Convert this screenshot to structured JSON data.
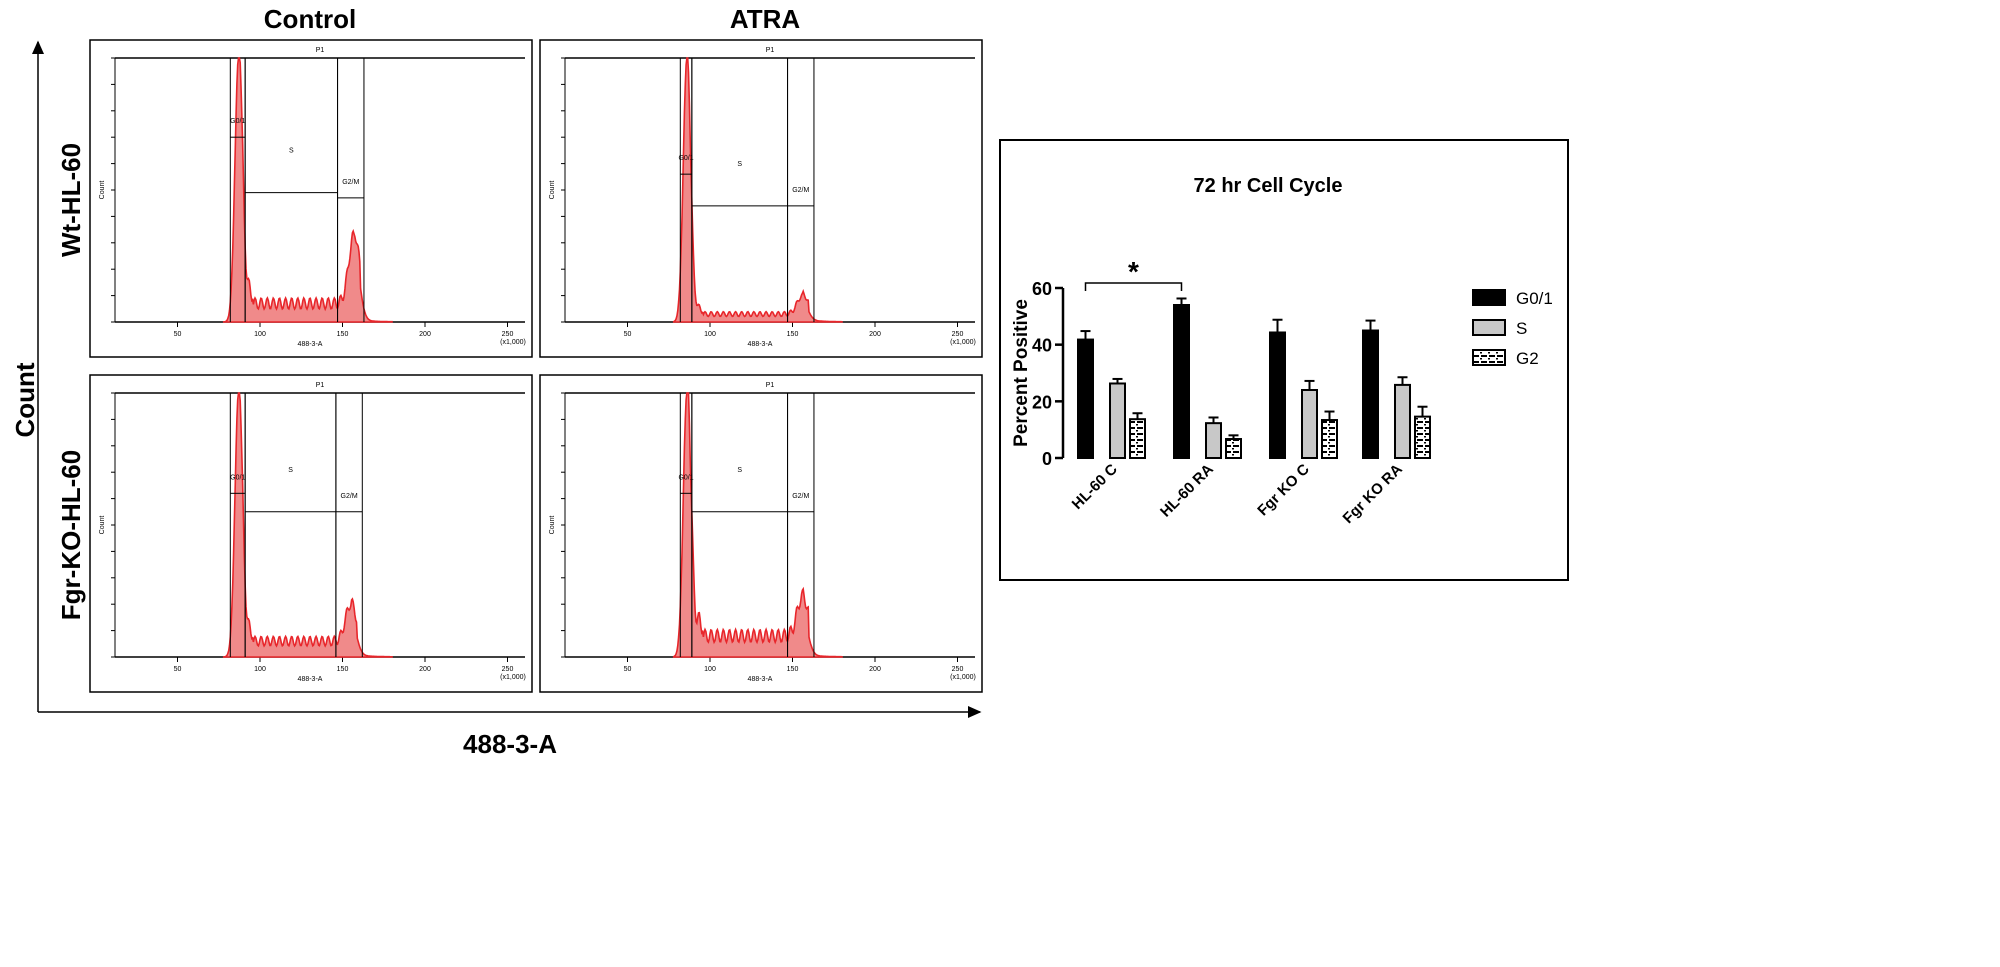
{
  "figure": {
    "column_titles": [
      "Control",
      "ATRA"
    ],
    "row_labels": [
      "Wt-HL-60",
      "Fgr-KO-HL-60"
    ],
    "y_axis_label": "Count",
    "x_axis_label": "488-3-A"
  },
  "chart_data": [
    {
      "type": "area",
      "panel": "Wt-HL-60 / Control",
      "gate_title": "P1",
      "xlabel": "488-3-A",
      "ylabel": "Count",
      "xticks": [
        "50",
        "100",
        "150",
        "200",
        "250"
      ],
      "x_unit": "(x1,000)",
      "xlim": [
        0,
        260
      ],
      "gates": [
        {
          "name": "G0/1",
          "range": [
            82,
            91
          ]
        },
        {
          "name": "S",
          "range": [
            91,
            147
          ]
        },
        {
          "name": "G2/M",
          "range": [
            147,
            163
          ]
        }
      ],
      "peaks": {
        "g1_center": 87,
        "g2_center": 157,
        "g2_relative_height": 0.26,
        "s_relative_level": 0.07
      },
      "color": "#e8262b"
    },
    {
      "type": "area",
      "panel": "Wt-HL-60 / ATRA",
      "gate_title": "P1",
      "xlabel": "488-3-A",
      "ylabel": "Count",
      "xticks": [
        "50",
        "100",
        "150",
        "200",
        "250"
      ],
      "x_unit": "(x1,000)",
      "xlim": [
        0,
        260
      ],
      "gates": [
        {
          "name": "G0/1",
          "range": [
            82,
            89
          ]
        },
        {
          "name": "S",
          "range": [
            89,
            147
          ]
        },
        {
          "name": "G2/M",
          "range": [
            147,
            163
          ]
        }
      ],
      "peaks": {
        "g1_center": 86,
        "g2_center": 156,
        "g2_relative_height": 0.07,
        "s_relative_level": 0.03
      },
      "color": "#e8262b"
    },
    {
      "type": "area",
      "panel": "Fgr-KO-HL-60 / Control",
      "gate_title": "P1",
      "xlabel": "488-3-A",
      "ylabel": "Count",
      "xticks": [
        "50",
        "100",
        "150",
        "200",
        "250"
      ],
      "x_unit": "(x1,000)",
      "xlim": [
        0,
        260
      ],
      "gates": [
        {
          "name": "G0/1",
          "range": [
            82,
            91
          ]
        },
        {
          "name": "S",
          "range": [
            91,
            146
          ]
        },
        {
          "name": "G2/M",
          "range": [
            146,
            162
          ]
        }
      ],
      "peaks": {
        "g1_center": 87,
        "g2_center": 155,
        "g2_relative_height": 0.14,
        "s_relative_level": 0.06
      },
      "color": "#e8262b"
    },
    {
      "type": "area",
      "panel": "Fgr-KO-HL-60 / ATRA",
      "gate_title": "P1",
      "xlabel": "488-3-A",
      "ylabel": "Count",
      "xticks": [
        "50",
        "100",
        "150",
        "200",
        "250"
      ],
      "x_unit": "(x1,000)",
      "xlim": [
        0,
        260
      ],
      "gates": [
        {
          "name": "G0/1",
          "range": [
            82,
            89
          ]
        },
        {
          "name": "S",
          "range": [
            89,
            147
          ]
        },
        {
          "name": "G2/M",
          "range": [
            147,
            163
          ]
        }
      ],
      "peaks": {
        "g1_center": 86,
        "g2_center": 156,
        "g2_relative_height": 0.15,
        "s_relative_level": 0.08
      },
      "color": "#e8262b"
    },
    {
      "type": "bar",
      "title": "72 hr Cell Cycle",
      "ylabel": "Percent Positive",
      "xlabel": "",
      "ylim": [
        0,
        60
      ],
      "yticks": [
        0,
        20,
        40,
        60
      ],
      "categories": [
        "HL-60 C",
        "HL-60 RA",
        "Fgr KO C",
        "Fgr KO RA"
      ],
      "series": [
        {
          "name": "G0/1",
          "values": [
            41.8,
            54.0,
            44.3,
            45.0
          ],
          "errors": [
            3.0,
            2.3,
            4.5,
            3.5
          ],
          "fill": "#000000"
        },
        {
          "name": "S",
          "values": [
            26.3,
            12.3,
            24.0,
            25.8
          ],
          "errors": [
            1.6,
            2.0,
            3.2,
            2.7
          ],
          "fill": "#c8c8c8"
        },
        {
          "name": "G2",
          "values": [
            13.7,
            6.7,
            13.4,
            14.6
          ],
          "errors": [
            2.1,
            1.3,
            3.0,
            3.5
          ],
          "fill": "pattern"
        }
      ],
      "significance": {
        "between": [
          "HL-60 C",
          "HL-60 RA"
        ],
        "series": "G0/1",
        "label": "*"
      },
      "legend": "right"
    }
  ]
}
